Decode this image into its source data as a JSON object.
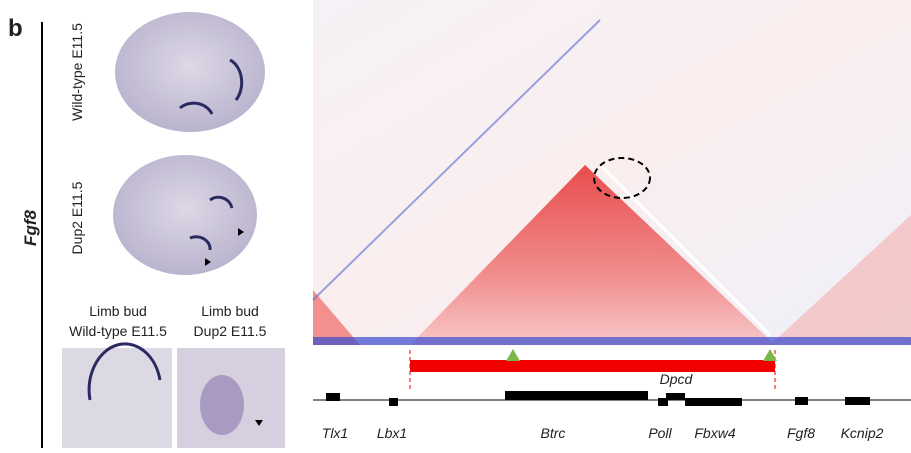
{
  "panel_label": "b",
  "gene_name": "Fgf8",
  "embryo_labels": [
    "Wild-type E11.5",
    "Dup2 E11.5"
  ],
  "limb_labels": [
    {
      "line1": "Limb bud",
      "line2": "Wild-type E11.5"
    },
    {
      "line1": "Limb bud",
      "line2": "Dup2 E11.5"
    }
  ],
  "transcript_labels": [
    "Dpcd"
  ],
  "genes": [
    "Tlx1",
    "Lbx1",
    "Btrc",
    "Poll",
    "Fbxw4",
    "Fgf8",
    "Kcnip2"
  ]
}
